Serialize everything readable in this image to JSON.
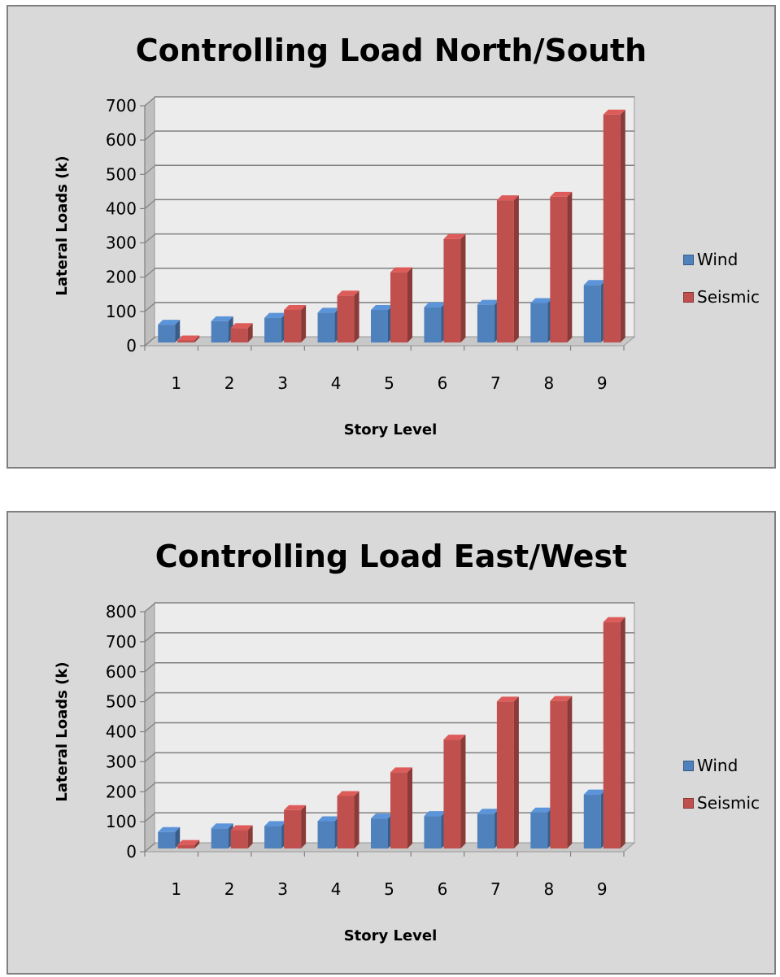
{
  "chart_data": [
    {
      "type": "bar",
      "title": "Controlling Load North/South",
      "xlabel": "Story Level",
      "ylabel": "Lateral Loads (k)",
      "categories": [
        "1",
        "2",
        "3",
        "4",
        "5",
        "6",
        "7",
        "8",
        "9"
      ],
      "ylim": [
        0,
        700
      ],
      "yticks": [
        "0",
        "100",
        "200",
        "300",
        "400",
        "500",
        "600",
        "700"
      ],
      "grid": true,
      "legend_position": "right",
      "series": [
        {
          "name": "Wind",
          "color": "#4f81bd",
          "values": [
            52,
            62,
            72,
            87,
            95,
            103,
            110,
            115,
            168
          ]
        },
        {
          "name": "Seismic",
          "color": "#c0504d",
          "values": [
            6,
            42,
            95,
            137,
            205,
            302,
            415,
            425,
            665
          ]
        }
      ]
    },
    {
      "type": "bar",
      "title": "Controlling Load East/West",
      "xlabel": "Story Level",
      "ylabel": "Lateral Loads (k)",
      "categories": [
        "1",
        "2",
        "3",
        "4",
        "5",
        "6",
        "7",
        "8",
        "9"
      ],
      "ylim": [
        0,
        800
      ],
      "yticks": [
        "0",
        "100",
        "200",
        "300",
        "400",
        "500",
        "600",
        "700",
        "800"
      ],
      "grid": true,
      "legend_position": "right",
      "series": [
        {
          "name": "Wind",
          "color": "#4f81bd",
          "values": [
            55,
            67,
            75,
            91,
            100,
            108,
            116,
            120,
            180
          ]
        },
        {
          "name": "Seismic",
          "color": "#c0504d",
          "values": [
            12,
            61,
            128,
            175,
            254,
            363,
            490,
            492,
            755
          ]
        }
      ]
    }
  ]
}
